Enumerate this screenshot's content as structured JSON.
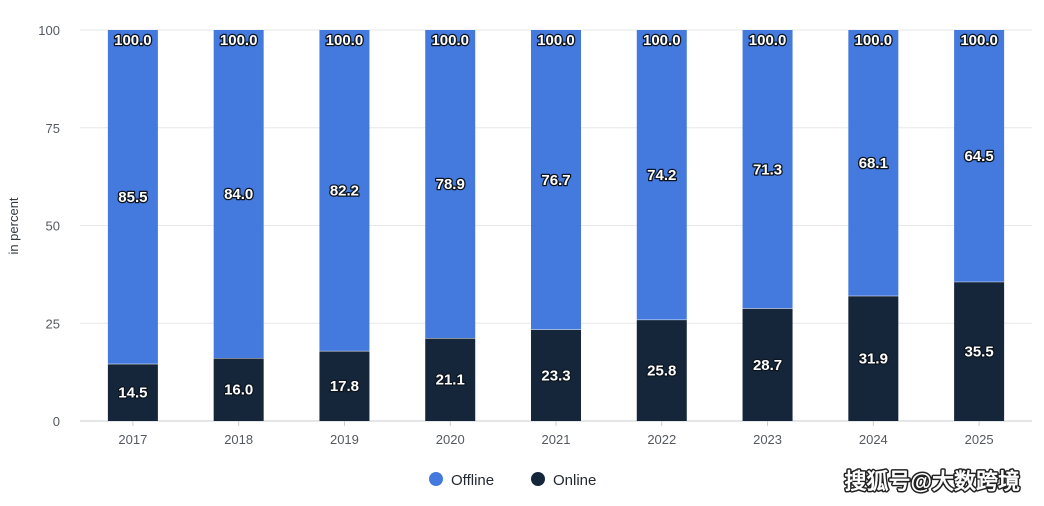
{
  "chart_data": {
    "type": "bar",
    "stacked": true,
    "title": "",
    "xlabel": "",
    "ylabel": "in percent",
    "ylim": [
      0,
      100
    ],
    "yticks": [
      0,
      25,
      50,
      75,
      100
    ],
    "grid": true,
    "legend_position": "bottom-center",
    "categories": [
      "2017",
      "2018",
      "2019",
      "2020",
      "2021",
      "2022",
      "2023",
      "2024",
      "2025"
    ],
    "series": [
      {
        "name": "Online",
        "color": "#15263b",
        "values": [
          14.5,
          16.0,
          17.8,
          21.1,
          23.3,
          25.8,
          28.7,
          31.9,
          35.5
        ]
      },
      {
        "name": "Offline",
        "color": "#4479de",
        "values": [
          85.5,
          84.0,
          82.2,
          78.9,
          76.7,
          74.2,
          71.3,
          68.1,
          64.5
        ]
      }
    ],
    "totals": [
      100.0,
      100.0,
      100.0,
      100.0,
      100.0,
      100.0,
      100.0,
      100.0,
      100.0
    ],
    "legend": [
      "Offline",
      "Online"
    ]
  },
  "watermark": "搜狐号@大数跨境"
}
